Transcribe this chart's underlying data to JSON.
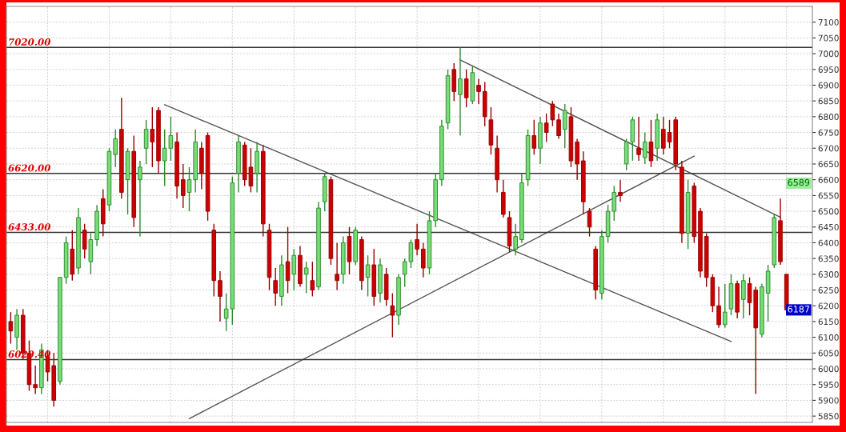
{
  "chart_data": {
    "type": "candlestick",
    "categories": [
      null,
      null,
      null,
      null,
      null,
      null,
      null,
      null,
      null,
      null,
      null,
      null,
      null,
      null,
      null,
      null,
      null,
      null,
      null,
      null,
      null,
      null,
      null,
      null,
      null,
      null,
      null,
      null,
      null,
      null,
      null,
      null,
      null,
      null,
      null,
      null,
      null,
      null,
      null,
      null,
      null,
      null,
      null,
      null,
      null,
      null,
      null,
      null,
      null,
      null,
      null,
      null,
      null,
      null,
      null,
      null,
      null,
      null,
      null,
      null,
      null,
      null,
      null,
      null,
      null,
      null,
      null,
      null,
      null,
      null,
      null,
      null,
      null,
      null,
      null,
      null,
      null,
      null,
      null,
      null,
      null,
      null,
      null,
      null,
      null,
      null,
      null,
      null,
      null,
      null,
      null,
      null,
      null,
      null,
      null,
      null,
      null,
      null,
      null,
      null,
      null,
      null,
      null,
      null,
      null,
      null,
      null,
      null,
      null,
      null,
      null,
      null,
      null,
      null,
      null,
      null,
      null,
      null,
      null,
      null,
      null,
      null,
      null,
      null,
      null,
      null,
      null
    ],
    "ohlc": [
      [
        6150,
        6180,
        6080,
        6120
      ],
      [
        6100,
        6190,
        6060,
        6170
      ],
      [
        6170,
        6190,
        6030,
        6050
      ],
      [
        6050,
        6090,
        5930,
        5950
      ],
      [
        5950,
        6010,
        5920,
        5940
      ],
      [
        5940,
        6080,
        5920,
        6060
      ],
      [
        6040,
        6060,
        5960,
        5990
      ],
      [
        6010,
        6050,
        5880,
        5900
      ],
      [
        5960,
        6290,
        5950,
        6290
      ],
      [
        6290,
        6420,
        6270,
        6400
      ],
      [
        6380,
        6440,
        6280,
        6300
      ],
      [
        6320,
        6510,
        6300,
        6480
      ],
      [
        6440,
        6460,
        6350,
        6380
      ],
      [
        6340,
        6430,
        6300,
        6410
      ],
      [
        6410,
        6520,
        6390,
        6500
      ],
      [
        6540,
        6570,
        6420,
        6460
      ],
      [
        6520,
        6700,
        6500,
        6690
      ],
      [
        6680,
        6760,
        6640,
        6730
      ],
      [
        6760,
        6860,
        6540,
        6560
      ],
      [
        6600,
        6700,
        6490,
        6690
      ],
      [
        6690,
        6740,
        6450,
        6480
      ],
      [
        6600,
        6660,
        6420,
        6640
      ],
      [
        6700,
        6790,
        6650,
        6760
      ],
      [
        6760,
        6830,
        6640,
        6720
      ],
      [
        6820,
        6830,
        6620,
        6660
      ],
      [
        6660,
        6760,
        6580,
        6700
      ],
      [
        6700,
        6800,
        6660,
        6740
      ],
      [
        6720,
        6750,
        6540,
        6580
      ],
      [
        6600,
        6650,
        6510,
        6550
      ],
      [
        6560,
        6640,
        6500,
        6600
      ],
      [
        6600,
        6760,
        6560,
        6720
      ],
      [
        6700,
        6720,
        6570,
        6620
      ],
      [
        6740,
        6750,
        6470,
        6500
      ],
      [
        6440,
        6460,
        6230,
        6280
      ],
      [
        6280,
        6310,
        6150,
        6230
      ],
      [
        6160,
        6240,
        6120,
        6190
      ],
      [
        6190,
        6610,
        6140,
        6590
      ],
      [
        6620,
        6740,
        6560,
        6720
      ],
      [
        6710,
        6720,
        6580,
        6600
      ],
      [
        6640,
        6700,
        6560,
        6580
      ],
      [
        6620,
        6720,
        6560,
        6690
      ],
      [
        6690,
        6710,
        6420,
        6460
      ],
      [
        6440,
        6460,
        6250,
        6290
      ],
      [
        6280,
        6320,
        6200,
        6240
      ],
      [
        6230,
        6360,
        6200,
        6330
      ],
      [
        6340,
        6450,
        6240,
        6280
      ],
      [
        6300,
        6380,
        6250,
        6360
      ],
      [
        6360,
        6390,
        6260,
        6270
      ],
      [
        6300,
        6340,
        6240,
        6320
      ],
      [
        6280,
        6340,
        6230,
        6250
      ],
      [
        6260,
        6530,
        6250,
        6510
      ],
      [
        6530,
        6620,
        6500,
        6610
      ],
      [
        6600,
        6610,
        6330,
        6350
      ],
      [
        6300,
        6400,
        6250,
        6280
      ],
      [
        6300,
        6420,
        6270,
        6400
      ],
      [
        6420,
        6450,
        6300,
        6340
      ],
      [
        6340,
        6450,
        6330,
        6440
      ],
      [
        6410,
        6420,
        6250,
        6280
      ],
      [
        6290,
        6360,
        6230,
        6330
      ],
      [
        6330,
        6380,
        6200,
        6230
      ],
      [
        6240,
        6350,
        6210,
        6330
      ],
      [
        6300,
        6320,
        6200,
        6220
      ],
      [
        6200,
        6240,
        6100,
        6170
      ],
      [
        6170,
        6300,
        6140,
        6290
      ],
      [
        6300,
        6350,
        6260,
        6340
      ],
      [
        6340,
        6410,
        6320,
        6400
      ],
      [
        6410,
        6460,
        6360,
        6380
      ],
      [
        6380,
        6400,
        6290,
        6320
      ],
      [
        6320,
        6500,
        6300,
        6470
      ],
      [
        6470,
        6620,
        6450,
        6600
      ],
      [
        6600,
        6790,
        6580,
        6770
      ],
      [
        6780,
        6950,
        6760,
        6930
      ],
      [
        6950,
        6970,
        6850,
        6880
      ],
      [
        6870,
        7020,
        6740,
        6920
      ],
      [
        6920,
        6950,
        6830,
        6860
      ],
      [
        6850,
        6960,
        6840,
        6940
      ],
      [
        6900,
        6920,
        6840,
        6880
      ],
      [
        6880,
        6910,
        6770,
        6800
      ],
      [
        6790,
        6830,
        6680,
        6710
      ],
      [
        6700,
        6740,
        6560,
        6600
      ],
      [
        6560,
        6600,
        6480,
        6490
      ],
      [
        6480,
        6500,
        6370,
        6390
      ],
      [
        6380,
        6460,
        6360,
        6420
      ],
      [
        6410,
        6620,
        6400,
        6590
      ],
      [
        6600,
        6760,
        6580,
        6740
      ],
      [
        6740,
        6790,
        6680,
        6700
      ],
      [
        6700,
        6800,
        6650,
        6780
      ],
      [
        6780,
        6810,
        6720,
        6750
      ],
      [
        6840,
        6850,
        6770,
        6790
      ],
      [
        6790,
        6810,
        6730,
        6740
      ],
      [
        6760,
        6840,
        6700,
        6820
      ],
      [
        6800,
        6830,
        6640,
        6660
      ],
      [
        6720,
        6730,
        6600,
        6650
      ],
      [
        6660,
        6690,
        6490,
        6530
      ],
      [
        6500,
        6510,
        6420,
        6450
      ],
      [
        6380,
        6390,
        6220,
        6250
      ],
      [
        6240,
        6440,
        6220,
        6420
      ],
      [
        6420,
        6520,
        6400,
        6500
      ],
      [
        6500,
        6580,
        6470,
        6560
      ],
      [
        6560,
        6600,
        6530,
        6550
      ],
      [
        6650,
        6730,
        6630,
        6720
      ],
      [
        6720,
        6800,
        6660,
        6790
      ],
      [
        6700,
        6800,
        6660,
        6680
      ],
      [
        6670,
        6750,
        6650,
        6720
      ],
      [
        6720,
        6790,
        6640,
        6660
      ],
      [
        6700,
        6810,
        6660,
        6790
      ],
      [
        6760,
        6800,
        6680,
        6700
      ],
      [
        6750,
        6790,
        6700,
        6720
      ],
      [
        6790,
        6800,
        6630,
        6650
      ],
      [
        6640,
        6660,
        6400,
        6430
      ],
      [
        6430,
        6600,
        6380,
        6560
      ],
      [
        6580,
        6590,
        6400,
        6420
      ],
      [
        6500,
        6510,
        6290,
        6310
      ],
      [
        6420,
        6430,
        6260,
        6290
      ],
      [
        6290,
        6300,
        6180,
        6200
      ],
      [
        6200,
        6260,
        6130,
        6140
      ],
      [
        6140,
        6270,
        6130,
        6180
      ],
      [
        6190,
        6300,
        6170,
        6270
      ],
      [
        6270,
        6280,
        6160,
        6180
      ],
      [
        6220,
        6300,
        6160,
        6280
      ],
      [
        6270,
        6290,
        6170,
        6210
      ],
      [
        6250,
        6260,
        5920,
        6130
      ],
      [
        6110,
        6270,
        6100,
        6260
      ],
      [
        6240,
        6330,
        6150,
        6310
      ],
      [
        6330,
        6490,
        6320,
        6480
      ],
      [
        6470,
        6540,
        6330,
        6340
      ],
      [
        6300,
        6300,
        6180,
        6187
      ]
    ],
    "series": [
      {
        "type": "line",
        "color": "#555555",
        "values": [
          null,
          null,
          null,
          null,
          null,
          null,
          null,
          null,
          null,
          null,
          null,
          null,
          null,
          null,
          null,
          null,
          null,
          null,
          null,
          null,
          null,
          null,
          null,
          null,
          null,
          6838,
          null,
          null,
          null,
          null,
          null,
          null,
          null,
          null,
          null,
          null,
          null,
          null,
          null,
          null,
          null,
          null,
          null,
          null,
          null,
          null,
          null,
          null,
          null,
          null,
          null,
          null,
          null,
          null,
          null,
          null,
          null,
          null,
          null,
          null,
          null,
          null,
          null,
          null,
          null,
          null,
          null,
          null,
          null,
          null,
          null,
          null,
          null,
          null,
          null,
          null,
          null,
          null,
          null,
          null,
          null,
          null,
          null,
          null,
          null,
          null,
          null,
          null,
          null,
          null,
          null,
          null,
          null,
          null,
          null,
          null,
          null,
          null,
          null,
          null,
          null,
          null,
          null,
          null,
          null,
          null,
          null,
          null,
          null,
          null,
          null,
          null,
          null,
          null,
          null,
          null,
          null,
          6087,
          null,
          null,
          null,
          null,
          null,
          null,
          null,
          null,
          null
        ]
      },
      {
        "type": "line",
        "color": "#555555",
        "values": [
          null,
          null,
          null,
          null,
          null,
          null,
          null,
          null,
          null,
          null,
          null,
          null,
          null,
          null,
          null,
          null,
          null,
          null,
          null,
          null,
          null,
          null,
          null,
          null,
          null,
          null,
          null,
          null,
          null,
          null,
          null,
          null,
          null,
          null,
          null,
          null,
          null,
          null,
          null,
          null,
          null,
          null,
          null,
          null,
          null,
          null,
          null,
          null,
          null,
          null,
          null,
          null,
          null,
          null,
          null,
          null,
          null,
          null,
          null,
          null,
          null,
          null,
          null,
          null,
          null,
          null,
          null,
          null,
          null,
          null,
          null,
          null,
          null,
          6980,
          null,
          null,
          null,
          null,
          null,
          null,
          null,
          null,
          null,
          null,
          null,
          null,
          null,
          null,
          null,
          null,
          null,
          null,
          null,
          null,
          null,
          null,
          null,
          null,
          null,
          null,
          null,
          null,
          null,
          null,
          null,
          null,
          null,
          null,
          null,
          null,
          null,
          null,
          null,
          null,
          null,
          null,
          null,
          null,
          null,
          null,
          null,
          null,
          null,
          null,
          null,
          6481,
          null
        ]
      },
      {
        "type": "line",
        "color": "#555555",
        "values": [
          null,
          null,
          null,
          null,
          null,
          null,
          null,
          null,
          null,
          null,
          null,
          null,
          null,
          null,
          null,
          null,
          null,
          null,
          null,
          null,
          null,
          null,
          null,
          null,
          null,
          null,
          null,
          null,
          null,
          5842,
          null,
          null,
          null,
          null,
          null,
          null,
          null,
          null,
          null,
          null,
          null,
          null,
          null,
          null,
          null,
          null,
          null,
          null,
          null,
          null,
          null,
          null,
          null,
          null,
          null,
          null,
          null,
          null,
          null,
          null,
          null,
          null,
          null,
          null,
          null,
          null,
          null,
          null,
          null,
          null,
          null,
          null,
          null,
          null,
          null,
          null,
          null,
          null,
          null,
          null,
          null,
          null,
          null,
          null,
          null,
          null,
          null,
          null,
          null,
          null,
          null,
          null,
          null,
          null,
          null,
          null,
          null,
          null,
          null,
          null,
          null,
          null,
          null,
          null,
          null,
          null,
          null,
          null,
          null,
          null,
          null,
          6675,
          null,
          null,
          null,
          null,
          null,
          null,
          null,
          null,
          null,
          null,
          null,
          null,
          null,
          null,
          null
        ]
      }
    ],
    "ref_lines": [
      {
        "axis": "y",
        "value": 7020,
        "label": "7020.00",
        "color": "#333333"
      },
      {
        "axis": "y",
        "value": 6620,
        "label": "6620.00",
        "color": "#333333"
      },
      {
        "axis": "y",
        "value": 6433,
        "label": "6433.00",
        "color": "#333333"
      },
      {
        "axis": "y",
        "value": 6029.4,
        "label": "6029.40",
        "color": "#333333"
      }
    ],
    "annotations": [
      {
        "text": "6589",
        "y": 6589
      },
      {
        "text": "6187",
        "y": 6187
      }
    ],
    "ylim": [
      5830,
      7150
    ],
    "yticks": [
      5850,
      5900,
      5950,
      6000,
      6050,
      6100,
      6150,
      6200,
      6250,
      6300,
      6350,
      6400,
      6450,
      6500,
      6550,
      6600,
      6650,
      6700,
      6750,
      6800,
      6850,
      6900,
      6950,
      7000,
      7050,
      7100
    ],
    "grid": true
  }
}
